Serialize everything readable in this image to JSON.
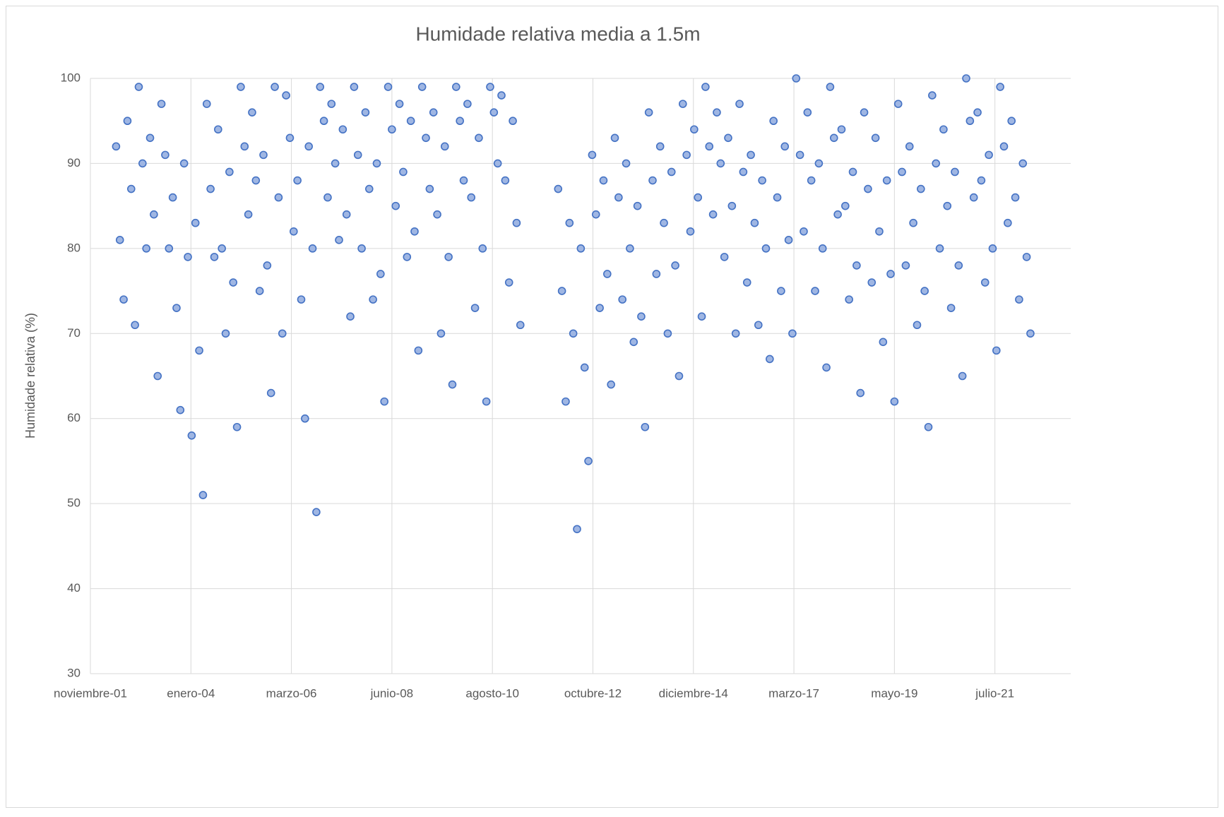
{
  "chart_data": {
    "type": "scatter",
    "title": "Humidade relativa media a 1.5m",
    "y_label": "Humidade relativa (%)",
    "color": "#4472c4",
    "marker_fill": "#9fb6e3",
    "grid": true,
    "ylim": [
      30,
      100
    ],
    "yticks": [
      30,
      40,
      50,
      60,
      70,
      80,
      90,
      100
    ],
    "xlim": [
      37196,
      44980
    ],
    "xticks": [
      {
        "value": 37196,
        "label": "noviembre-01"
      },
      {
        "value": 37994,
        "label": "enero-04"
      },
      {
        "value": 38792,
        "label": "marzo-06"
      },
      {
        "value": 39590,
        "label": "junio-08"
      },
      {
        "value": 40388,
        "label": "agosto-10"
      },
      {
        "value": 41186,
        "label": "octubre-12"
      },
      {
        "value": 41984,
        "label": "diciembre-14"
      },
      {
        "value": 42782,
        "label": "marzo-17"
      },
      {
        "value": 43580,
        "label": "mayo-19"
      },
      {
        "value": 44378,
        "label": "julio-21"
      }
    ],
    "x": [
      37400,
      37430,
      37460,
      37490,
      37520,
      37550,
      37580,
      37610,
      37640,
      37670,
      37700,
      37730,
      37760,
      37790,
      37820,
      37850,
      37880,
      37910,
      37940,
      37970,
      38000,
      38030,
      38060,
      38090,
      38120,
      38150,
      38180,
      38210,
      38240,
      38270,
      38300,
      38330,
      38360,
      38390,
      38420,
      38450,
      38480,
      38510,
      38540,
      38570,
      38600,
      38630,
      38660,
      38690,
      38720,
      38750,
      38780,
      38810,
      38840,
      38870,
      38900,
      38930,
      38960,
      38990,
      39020,
      39050,
      39080,
      39110,
      39140,
      39170,
      39200,
      39230,
      39260,
      39290,
      39320,
      39350,
      39380,
      39410,
      39440,
      39470,
      39500,
      39530,
      39560,
      39590,
      39620,
      39650,
      39680,
      39710,
      39740,
      39770,
      39800,
      39830,
      39860,
      39890,
      39920,
      39950,
      39980,
      40010,
      40040,
      40070,
      40100,
      40130,
      40160,
      40190,
      40220,
      40250,
      40280,
      40310,
      40340,
      40370,
      40400,
      40430,
      40460,
      40490,
      40520,
      40550,
      40580,
      40610,
      40910,
      40940,
      40970,
      41000,
      41030,
      41060,
      41090,
      41120,
      41150,
      41180,
      41210,
      41240,
      41270,
      41300,
      41330,
      41360,
      41390,
      41420,
      41450,
      41480,
      41510,
      41540,
      41570,
      41600,
      41630,
      41660,
      41690,
      41720,
      41750,
      41780,
      41810,
      41840,
      41870,
      41900,
      41930,
      41960,
      41990,
      42020,
      42050,
      42080,
      42110,
      42140,
      42170,
      42200,
      42230,
      42260,
      42290,
      42320,
      42350,
      42380,
      42410,
      42440,
      42470,
      42500,
      42530,
      42560,
      42590,
      42620,
      42650,
      42680,
      42710,
      42740,
      42770,
      42800,
      42830,
      42860,
      42890,
      42920,
      42950,
      42980,
      43010,
      43040,
      43070,
      43100,
      43130,
      43160,
      43190,
      43220,
      43250,
      43280,
      43310,
      43340,
      43370,
      43400,
      43430,
      43460,
      43490,
      43520,
      43550,
      43580,
      43610,
      43640,
      43670,
      43700,
      43730,
      43760,
      43790,
      43820,
      43850,
      43880,
      43910,
      43940,
      43970,
      44000,
      44030,
      44060,
      44090,
      44120,
      44150,
      44180,
      44210,
      44240,
      44270,
      44300,
      44330,
      44360,
      44390,
      44420,
      44450,
      44480,
      44510,
      44540,
      44570,
      44600,
      44630,
      44660
    ],
    "values": [
      92,
      81,
      74,
      95,
      87,
      71,
      99,
      90,
      80,
      93,
      84,
      65,
      97,
      91,
      80,
      86,
      73,
      61,
      90,
      79,
      58,
      83,
      68,
      51,
      97,
      87,
      79,
      94,
      80,
      70,
      89,
      76,
      59,
      99,
      92,
      84,
      96,
      88,
      75,
      91,
      78,
      63,
      99,
      86,
      70,
      98,
      93,
      82,
      88,
      74,
      60,
      92,
      80,
      49,
      99,
      95,
      86,
      97,
      90,
      81,
      94,
      84,
      72,
      99,
      91,
      80,
      96,
      87,
      74,
      90,
      77,
      62,
      99,
      94,
      85,
      97,
      89,
      79,
      95,
      82,
      68,
      99,
      93,
      87,
      96,
      84,
      70,
      92,
      79,
      64,
      99,
      95,
      88,
      97,
      86,
      73,
      93,
      80,
      62,
      99,
      96,
      90,
      98,
      88,
      76,
      95,
      83,
      71,
      87,
      75,
      62,
      83,
      70,
      47,
      80,
      66,
      55,
      91,
      84,
      73,
      88,
      77,
      64,
      93,
      86,
      74,
      90,
      80,
      69,
      85,
      72,
      59,
      96,
      88,
      77,
      92,
      83,
      70,
      89,
      78,
      65,
      97,
      91,
      82,
      94,
      86,
      72,
      99,
      92,
      84,
      96,
      90,
      79,
      93,
      85,
      70,
      97,
      89,
      76,
      91,
      83,
      71,
      88,
      80,
      67,
      95,
      86,
      75,
      92,
      81,
      70,
      100,
      91,
      82,
      96,
      88,
      75,
      90,
      80,
      66,
      99,
      93,
      84,
      94,
      85,
      74,
      89,
      78,
      63,
      96,
      87,
      76,
      93,
      82,
      69,
      88,
      77,
      62,
      97,
      89,
      78,
      92,
      83,
      71,
      87,
      75,
      59,
      98,
      90,
      80,
      94,
      85,
      73,
      89,
      78,
      65,
      100,
      95,
      86,
      96,
      88,
      76,
      91,
      80,
      68,
      99,
      92,
      83,
      95,
      86,
      74,
      90,
      79,
      70
    ]
  }
}
